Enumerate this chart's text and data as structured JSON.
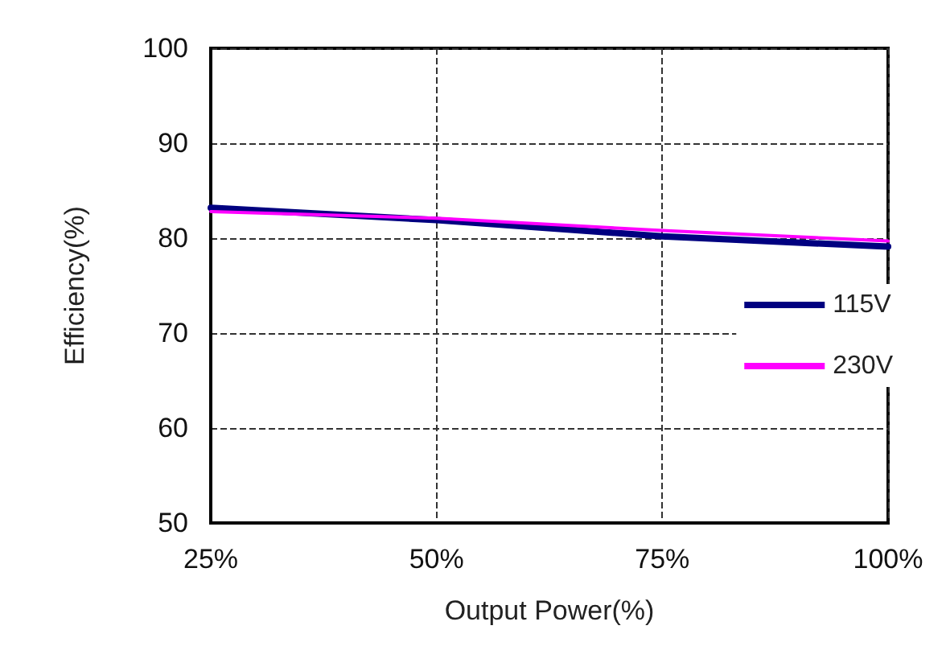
{
  "chart_data": {
    "type": "line",
    "xlabel": "Output Power(%)",
    "ylabel": "Efficiency(%)",
    "categories": [
      "25%",
      "50%",
      "75%",
      "100%"
    ],
    "series": [
      {
        "name": "115V",
        "color": "#000080",
        "values": [
          83.2,
          81.9,
          80.2,
          79.1
        ]
      },
      {
        "name": "230V",
        "color": "#ff00ff",
        "values": [
          82.8,
          82.1,
          80.8,
          79.7
        ]
      }
    ],
    "ylim": [
      50,
      100
    ],
    "yticks": [
      50,
      60,
      70,
      80,
      90,
      100
    ],
    "grid": true,
    "legend": "right",
    "marker": "none",
    "line_style": "solid"
  }
}
